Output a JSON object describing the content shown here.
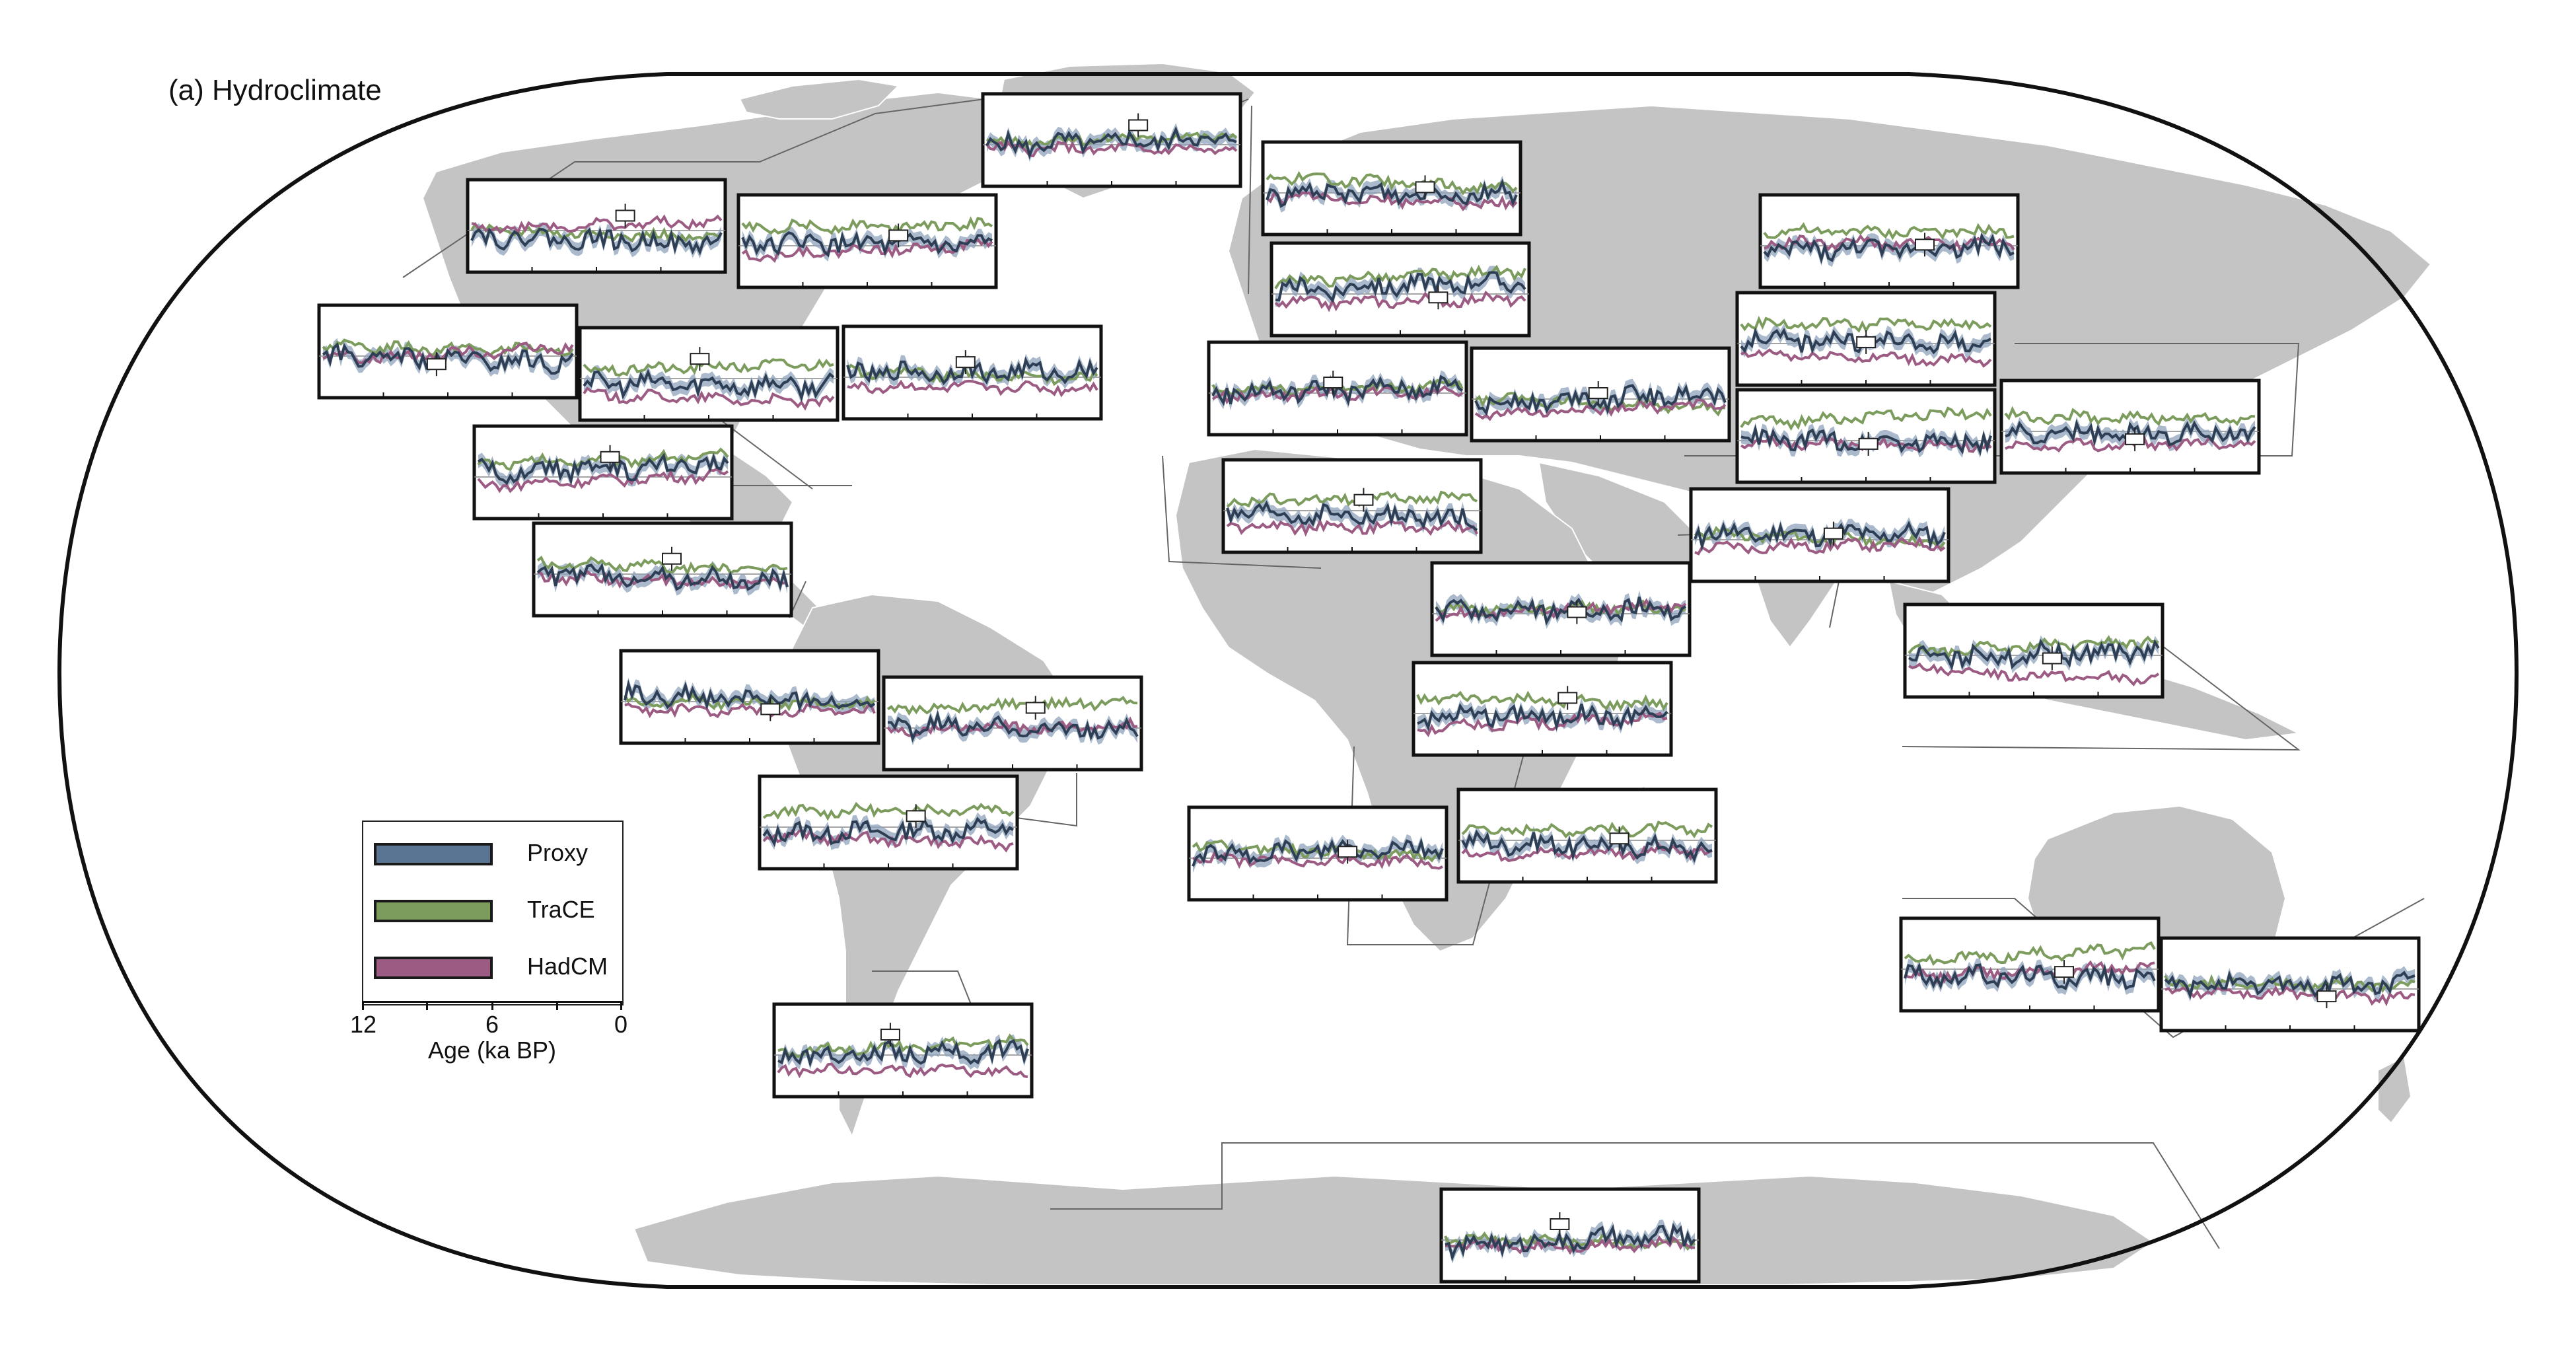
{
  "panel_title": "(a) Hydroclimate",
  "legend": {
    "items": [
      {
        "label": "Proxy",
        "color": "#5a7594"
      },
      {
        "label": "TraCE",
        "color": "#7c9c5e"
      },
      {
        "label": "HadCM",
        "color": "#9c5b82"
      }
    ]
  },
  "age_axis": {
    "label": "Age (ka BP)",
    "ticks": [
      "12",
      "6",
      "0"
    ]
  },
  "colors": {
    "land": "#c4c4c4",
    "ocean": "#ffffff",
    "proxy": "#5a7594",
    "proxy_band": "#8ea3bb",
    "trace": "#7c9c5e",
    "hadcm": "#9c5b82",
    "frame": "#111111"
  },
  "inset_count": 32
}
